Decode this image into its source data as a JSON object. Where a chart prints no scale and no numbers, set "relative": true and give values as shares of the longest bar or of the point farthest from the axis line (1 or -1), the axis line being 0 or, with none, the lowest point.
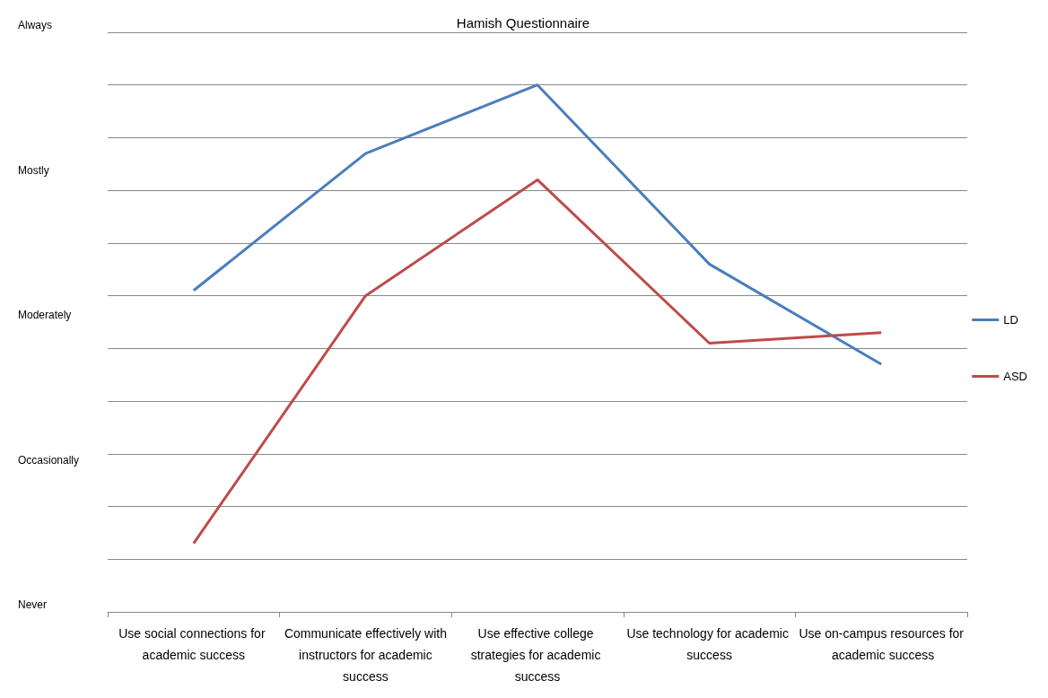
{
  "chart_data": {
    "type": "line",
    "title": "Hamish Questionnaire",
    "categories": [
      "Use social connections for academic success",
      "Communicate effectively with instructors for academic success",
      "Use effective college strategies for academic success",
      "Use technology for academic success",
      "Use on-campus resources for academic success"
    ],
    "series": [
      {
        "name": "LD",
        "color": "#4a7ebb",
        "values": [
          0.61,
          0.87,
          1,
          0.66,
          0.47
        ]
      },
      {
        "name": "ASD",
        "color": "#be4b48",
        "values": [
          0.13,
          0.6,
          0.82,
          0.51,
          0.53
        ]
      }
    ],
    "relative": true,
    "annotations": [
      "Never",
      "Occasionally",
      "Moderately",
      "Mostly",
      "Always"
    ],
    "grid": "y",
    "legend": "right",
    "marker": "none",
    "line_style": "solid"
  }
}
